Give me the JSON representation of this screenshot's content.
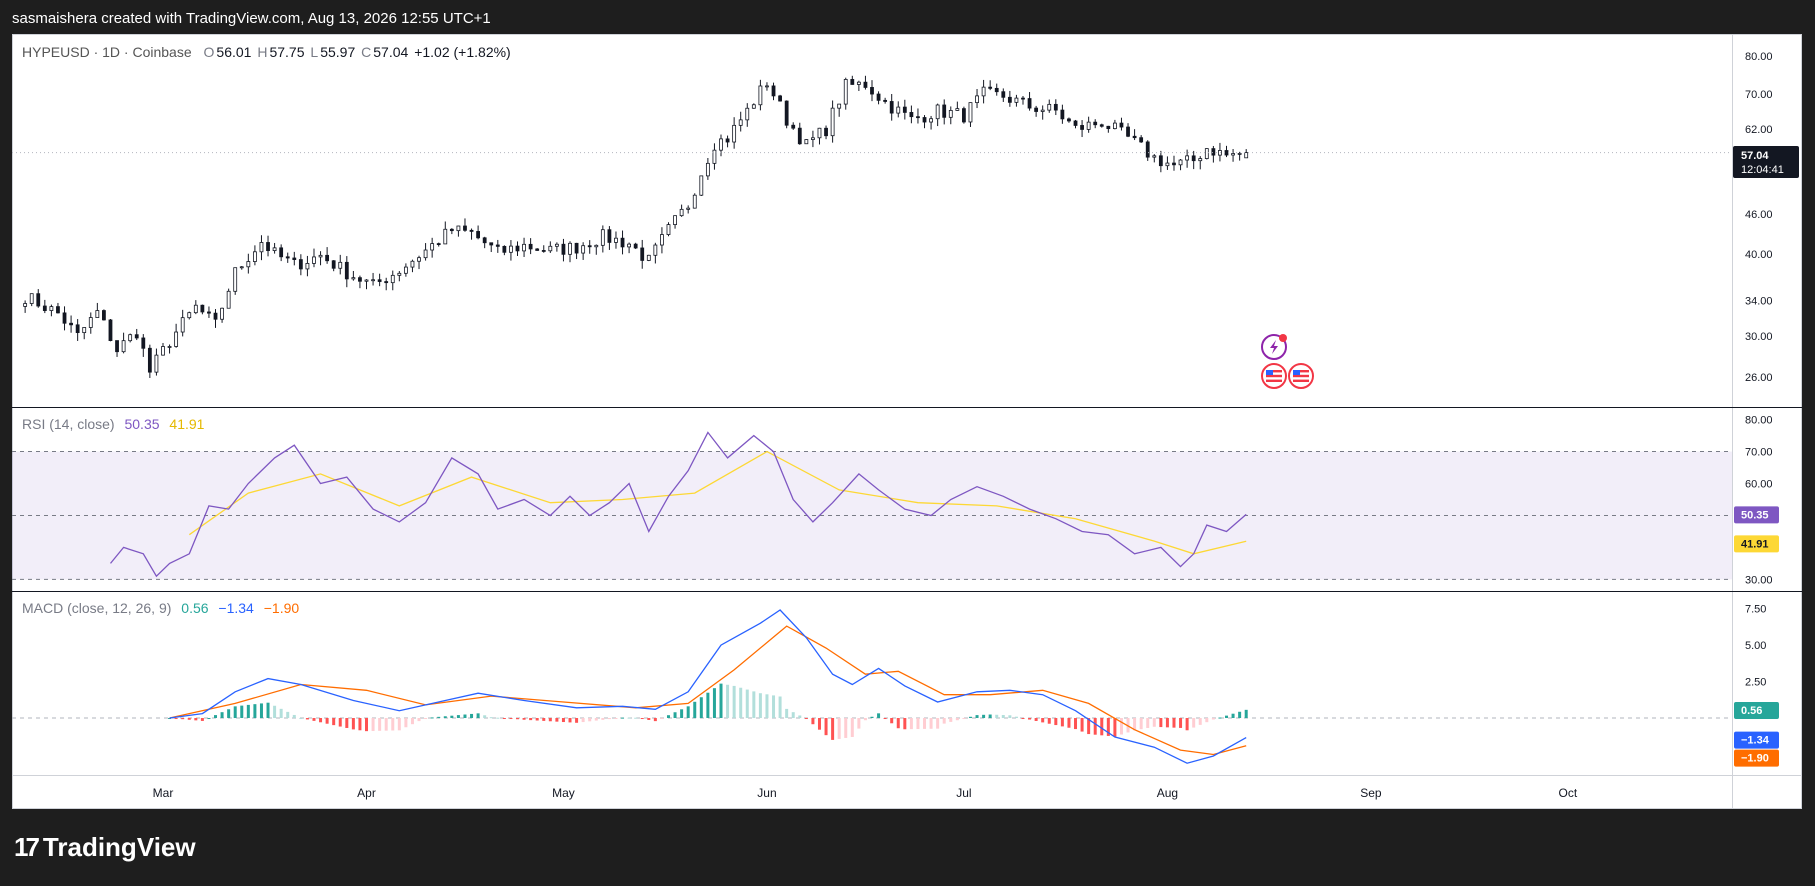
{
  "header": {
    "text": "sasmaishera created with TradingView.com, Aug 13, 2026 12:55 UTC+1"
  },
  "footer": {
    "brand": "TradingView",
    "logo_mark": "17"
  },
  "legend_main": {
    "symbol": "HYPEUSD · 1D · Coinbase",
    "o_label": "O",
    "o": "56.01",
    "h_label": "H",
    "h": "57.75",
    "l_label": "L",
    "l": "55.97",
    "c_label": "C",
    "c": "57.04",
    "change": "+1.02 (+1.82%)"
  },
  "legend_rsi": {
    "label": "RSI (14, close)",
    "v1": "50.35",
    "v2": "41.91"
  },
  "legend_macd": {
    "label": "MACD (close, 12, 26, 9)",
    "v1": "0.56",
    "v2": "−1.34",
    "v3": "−1.90"
  },
  "price_badge": {
    "price": "57.04",
    "countdown": "12:04:41"
  },
  "colors": {
    "rsi_line": "#7e57c2",
    "rsi_ma": "#fdd835",
    "macd_line": "#2962ff",
    "signal": "#ff6d00",
    "hist_pos_strong": "#26a69a",
    "hist_pos_weak": "#b2dfdb",
    "hist_neg_strong": "#ff5252",
    "hist_neg_weak": "#ffcdd2",
    "candle": "#131722",
    "badge_rsi": "#7e57c2",
    "badge_ma": "#fdd835",
    "badge_hist": "#26a69a",
    "badge_macd": "#2962ff",
    "badge_signal": "#ff6d00"
  },
  "event_icons": [
    "lightning-icon",
    "us-flag-icon",
    "us-flag-icon"
  ],
  "chart_data": [
    {
      "type": "candlestick",
      "title": "HYPEUSD · 1D · Coinbase",
      "scale": "log",
      "x_tick_labels": [
        "Mar",
        "Apr",
        "May",
        "Jun",
        "Jul",
        "Aug",
        "Sep",
        "Oct"
      ],
      "y_tick_labels": [
        "80.00",
        "70.00",
        "62.00",
        "57.04",
        "46.00",
        "40.00",
        "34.00",
        "30.00",
        "26.00"
      ],
      "ylim": [
        24,
        84
      ],
      "x_range": [
        "2026-02-06",
        "2026-10-26"
      ],
      "start_date": "2026-02-08",
      "waypoints": [
        [
          "2026-02-08",
          34.5
        ],
        [
          "2026-02-13",
          32.5
        ],
        [
          "2026-02-16",
          30.0
        ],
        [
          "2026-02-19",
          32.6
        ],
        [
          "2026-02-22",
          28.6
        ],
        [
          "2026-02-25",
          30.5
        ],
        [
          "2026-02-27",
          26.5
        ],
        [
          "2026-03-02",
          29.5
        ],
        [
          "2026-03-06",
          33.2
        ],
        [
          "2026-03-09",
          31.2
        ],
        [
          "2026-03-12",
          37.5
        ],
        [
          "2026-03-16",
          41.8
        ],
        [
          "2026-03-18",
          40.0
        ],
        [
          "2026-03-21",
          38.5
        ],
        [
          "2026-03-25",
          39.8
        ],
        [
          "2026-03-29",
          37.5
        ],
        [
          "2026-04-02",
          35.8
        ],
        [
          "2026-04-06",
          37.8
        ],
        [
          "2026-04-10",
          40.5
        ],
        [
          "2026-04-14",
          43.5
        ],
        [
          "2026-04-17",
          43.0
        ],
        [
          "2026-04-21",
          40.2
        ],
        [
          "2026-04-25",
          41.2
        ],
        [
          "2026-04-29",
          40.5
        ],
        [
          "2026-05-03",
          41.0
        ],
        [
          "2026-05-07",
          42.5
        ],
        [
          "2026-05-11",
          41.5
        ],
        [
          "2026-05-14",
          39.0
        ],
        [
          "2026-05-17",
          43.5
        ],
        [
          "2026-05-20",
          47.5
        ],
        [
          "2026-05-24",
          59.0
        ],
        [
          "2026-05-26",
          60.0
        ],
        [
          "2026-05-29",
          66.0
        ],
        [
          "2026-06-01",
          73.0
        ],
        [
          "2026-06-04",
          64.0
        ],
        [
          "2026-06-07",
          58.5
        ],
        [
          "2026-06-10",
          62.0
        ],
        [
          "2026-06-13",
          72.0
        ],
        [
          "2026-06-16",
          72.5
        ],
        [
          "2026-06-19",
          68.0
        ],
        [
          "2026-06-23",
          64.0
        ],
        [
          "2026-06-27",
          66.0
        ],
        [
          "2026-07-01",
          65.0
        ],
        [
          "2026-07-04",
          70.0
        ],
        [
          "2026-07-07",
          69.5
        ],
        [
          "2026-07-11",
          67.0
        ],
        [
          "2026-07-15",
          66.0
        ],
        [
          "2026-07-18",
          62.0
        ],
        [
          "2026-07-22",
          63.5
        ],
        [
          "2026-07-26",
          60.0
        ],
        [
          "2026-07-30",
          56.0
        ],
        [
          "2026-08-02",
          54.5
        ],
        [
          "2026-08-05",
          55.5
        ],
        [
          "2026-08-07",
          58.0
        ],
        [
          "2026-08-10",
          56.5
        ],
        [
          "2026-08-13",
          57.04
        ]
      ],
      "last": {
        "open": 56.01,
        "high": 57.75,
        "low": 55.97,
        "close": 57.04
      }
    },
    {
      "type": "line",
      "title": "RSI (14, close)",
      "ylim": [
        27,
        83
      ],
      "y_tick_labels": [
        "80.00",
        "70.00",
        "60.00",
        "50.35",
        "41.91",
        "30.00"
      ],
      "band": [
        30,
        70
      ],
      "midline": 50,
      "series": [
        {
          "name": "RSI",
          "values": [
            [
              "2026-02-21",
              35
            ],
            [
              "2026-02-23",
              40
            ],
            [
              "2026-02-26",
              38
            ],
            [
              "2026-02-28",
              31
            ],
            [
              "2026-03-02",
              35
            ],
            [
              "2026-03-05",
              38
            ],
            [
              "2026-03-07",
              48
            ],
            [
              "2026-03-08",
              53
            ],
            [
              "2026-03-11",
              52
            ],
            [
              "2026-03-14",
              60
            ],
            [
              "2026-03-18",
              68
            ],
            [
              "2026-03-21",
              72
            ],
            [
              "2026-03-25",
              60
            ],
            [
              "2026-03-29",
              62
            ],
            [
              "2026-04-02",
              52
            ],
            [
              "2026-04-06",
              48
            ],
            [
              "2026-04-10",
              54
            ],
            [
              "2026-04-14",
              68
            ],
            [
              "2026-04-18",
              63
            ],
            [
              "2026-04-21",
              52
            ],
            [
              "2026-04-25",
              55
            ],
            [
              "2026-04-29",
              50
            ],
            [
              "2026-05-02",
              56
            ],
            [
              "2026-05-05",
              50
            ],
            [
              "2026-05-08",
              54
            ],
            [
              "2026-05-11",
              60
            ],
            [
              "2026-05-14",
              45
            ],
            [
              "2026-05-17",
              56
            ],
            [
              "2026-05-20",
              64
            ],
            [
              "2026-05-23",
              76
            ],
            [
              "2026-05-26",
              68
            ],
            [
              "2026-05-30",
              75
            ],
            [
              "2026-06-02",
              70
            ],
            [
              "2026-06-05",
              55
            ],
            [
              "2026-06-08",
              48
            ],
            [
              "2026-06-11",
              54
            ],
            [
              "2026-06-15",
              63
            ],
            [
              "2026-06-18",
              58
            ],
            [
              "2026-06-22",
              52
            ],
            [
              "2026-06-26",
              50
            ],
            [
              "2026-06-29",
              55
            ],
            [
              "2026-07-03",
              59
            ],
            [
              "2026-07-07",
              56
            ],
            [
              "2026-07-11",
              52
            ],
            [
              "2026-07-15",
              49
            ],
            [
              "2026-07-19",
              45
            ],
            [
              "2026-07-23",
              44
            ],
            [
              "2026-07-27",
              38
            ],
            [
              "2026-07-31",
              40
            ],
            [
              "2026-08-03",
              34
            ],
            [
              "2026-08-05",
              38
            ],
            [
              "2026-08-07",
              47
            ],
            [
              "2026-08-10",
              45
            ],
            [
              "2026-08-13",
              50.35
            ]
          ]
        },
        {
          "name": "RSI-based MA",
          "values": [
            [
              "2026-03-05",
              44
            ],
            [
              "2026-03-14",
              57
            ],
            [
              "2026-03-25",
              63
            ],
            [
              "2026-04-06",
              53
            ],
            [
              "2026-04-17",
              62
            ],
            [
              "2026-04-29",
              54
            ],
            [
              "2026-05-10",
              55
            ],
            [
              "2026-05-21",
              57
            ],
            [
              "2026-06-01",
              70
            ],
            [
              "2026-06-12",
              58
            ],
            [
              "2026-06-24",
              54
            ],
            [
              "2026-07-06",
              53
            ],
            [
              "2026-07-18",
              49
            ],
            [
              "2026-07-30",
              42
            ],
            [
              "2026-08-05",
              38
            ],
            [
              "2026-08-13",
              41.91
            ]
          ]
        }
      ]
    },
    {
      "type": "line",
      "title": "MACD (close, 12, 26, 9)",
      "ylim": [
        -3.7,
        8.5
      ],
      "y_tick_labels": [
        "7.50",
        "5.00",
        "2.50",
        "0.56",
        "−1.34",
        "−1.90"
      ],
      "zero_line": 0,
      "series": [
        {
          "name": "MACD",
          "values": [
            [
              "2026-03-02",
              0.0
            ],
            [
              "2026-03-07",
              0.3
            ],
            [
              "2026-03-12",
              1.8
            ],
            [
              "2026-03-17",
              2.7
            ],
            [
              "2026-03-22",
              2.3
            ],
            [
              "2026-03-30",
              1.2
            ],
            [
              "2026-04-06",
              0.5
            ],
            [
              "2026-04-13",
              1.2
            ],
            [
              "2026-04-18",
              1.7
            ],
            [
              "2026-04-25",
              1.2
            ],
            [
              "2026-05-03",
              0.7
            ],
            [
              "2026-05-10",
              0.8
            ],
            [
              "2026-05-15",
              0.6
            ],
            [
              "2026-05-20",
              1.8
            ],
            [
              "2026-05-25",
              5.0
            ],
            [
              "2026-05-31",
              6.5
            ],
            [
              "2026-06-03",
              7.4
            ],
            [
              "2026-06-07",
              5.5
            ],
            [
              "2026-06-11",
              3.0
            ],
            [
              "2026-06-14",
              2.3
            ],
            [
              "2026-06-18",
              3.4
            ],
            [
              "2026-06-22",
              2.2
            ],
            [
              "2026-06-27",
              1.1
            ],
            [
              "2026-07-03",
              1.8
            ],
            [
              "2026-07-08",
              1.9
            ],
            [
              "2026-07-13",
              1.6
            ],
            [
              "2026-07-18",
              0.5
            ],
            [
              "2026-07-24",
              -1.3
            ],
            [
              "2026-07-30",
              -2.0
            ],
            [
              "2026-08-04",
              -3.1
            ],
            [
              "2026-08-08",
              -2.6
            ],
            [
              "2026-08-13",
              -1.34
            ]
          ]
        },
        {
          "name": "Signal",
          "values": [
            [
              "2026-03-02",
              0.0
            ],
            [
              "2026-03-12",
              1.0
            ],
            [
              "2026-03-22",
              2.3
            ],
            [
              "2026-04-01",
              1.9
            ],
            [
              "2026-04-10",
              0.9
            ],
            [
              "2026-04-20",
              1.5
            ],
            [
              "2026-05-01",
              1.1
            ],
            [
              "2026-05-12",
              0.7
            ],
            [
              "2026-05-20",
              1.0
            ],
            [
              "2026-05-27",
              3.3
            ],
            [
              "2026-06-04",
              6.3
            ],
            [
              "2026-06-10",
              4.8
            ],
            [
              "2026-06-16",
              3.0
            ],
            [
              "2026-06-21",
              3.2
            ],
            [
              "2026-06-28",
              1.6
            ],
            [
              "2026-07-05",
              1.6
            ],
            [
              "2026-07-13",
              1.9
            ],
            [
              "2026-07-20",
              1.0
            ],
            [
              "2026-07-27",
              -0.8
            ],
            [
              "2026-08-03",
              -2.2
            ],
            [
              "2026-08-08",
              -2.5
            ],
            [
              "2026-08-13",
              -1.9
            ]
          ]
        }
      ]
    }
  ]
}
